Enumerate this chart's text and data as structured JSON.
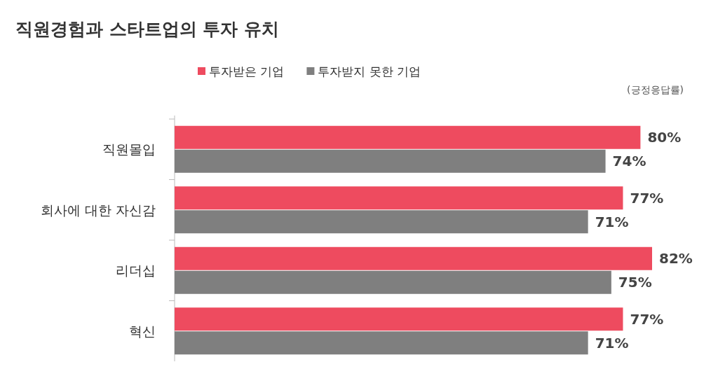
{
  "chart_data": {
    "type": "bar",
    "orientation": "horizontal",
    "title": "직원경험과 스타트업의 투자 유치",
    "categories": [
      "직원몰입",
      "회사에 대한 자신감",
      "리더십",
      "혁신"
    ],
    "series": [
      {
        "name": "투자받은 기업",
        "color": "#ee4b5f",
        "values": [
          80,
          77,
          82,
          77
        ],
        "value_labels": [
          "80%",
          "77%",
          "82%",
          "77%"
        ]
      },
      {
        "name": "투자받지 못한 기업",
        "color": "#7f7f7f",
        "values": [
          74,
          71,
          75,
          71
        ],
        "value_labels": [
          "74%",
          "71%",
          "75%",
          "71%"
        ]
      }
    ],
    "tick_labels": "y",
    "legend": "top",
    "annotations": [
      "(긍정응답률)"
    ]
  }
}
